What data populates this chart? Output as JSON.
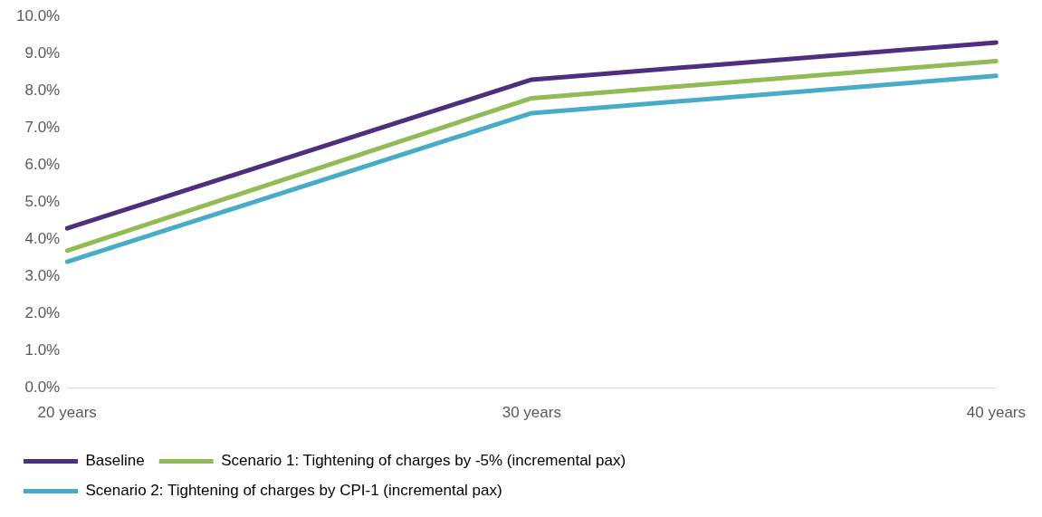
{
  "chart_data": {
    "type": "line",
    "categories": [
      "20 years",
      "30 years",
      "40 years"
    ],
    "series": [
      {
        "name": "Baseline",
        "color": "#4f2d7f",
        "values": [
          4.3,
          8.3,
          9.3
        ]
      },
      {
        "name": "Scenario 1: Tightening of charges by -5% (incremental pax)",
        "color": "#92bb55",
        "values": [
          3.7,
          7.8,
          8.8
        ]
      },
      {
        "name": "Scenario 2: Tightening of charges by CPI-1 (incremental pax)",
        "color": "#46acc8",
        "values": [
          3.4,
          7.4,
          8.4
        ]
      }
    ],
    "ylim": [
      0,
      10
    ],
    "yticks": [
      {
        "value": 0,
        "label": "0.0%"
      },
      {
        "value": 1,
        "label": "1.0%"
      },
      {
        "value": 2,
        "label": "2.0%"
      },
      {
        "value": 3,
        "label": "3.0%"
      },
      {
        "value": 4,
        "label": "4.0%"
      },
      {
        "value": 5,
        "label": "5.0%"
      },
      {
        "value": 6,
        "label": "6.0%"
      },
      {
        "value": 7,
        "label": "7.0%"
      },
      {
        "value": 8,
        "label": "8.0%"
      },
      {
        "value": 9,
        "label": "9.0%"
      },
      {
        "value": 10,
        "label": "10.0%"
      }
    ],
    "grid": false,
    "legend": "bottom",
    "marker": "none",
    "line_style": "solid"
  }
}
